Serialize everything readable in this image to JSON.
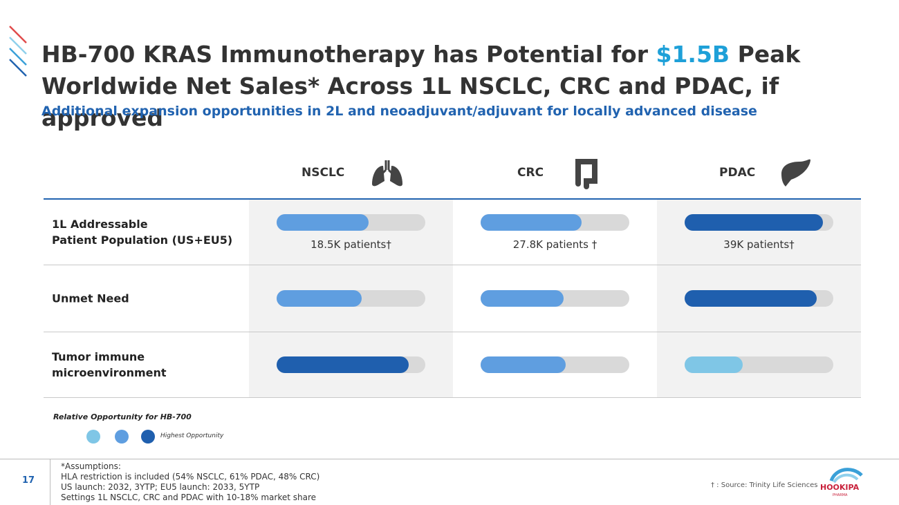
{
  "header": {
    "title_parts": [
      "HB-700 KRAS Immunotherapy has Potential for ",
      "$1.5B",
      " Peak Worldwide Net Sales* Across 1L NSCLC, CRC and PDAC, if approved"
    ],
    "subtitle": "Additional expansion opportunities in 2L and neoadjuvant/adjuvant for locally advanced disease"
  },
  "table": {
    "columns": [
      "NSCLC",
      "CRC",
      "PDAC"
    ],
    "rows": [
      {
        "label": "1L Addressable\nPatient Population (US+EU5)",
        "cells": [
          {
            "value": 62,
            "color": "#5f9ee0",
            "label": "18.5K patients†"
          },
          {
            "value": 68,
            "color": "#5f9ee0",
            "label": "27.8K patients †"
          },
          {
            "value": 93,
            "color": "#1f5fae",
            "label": "39K patients†"
          }
        ]
      },
      {
        "label": "Unmet Need",
        "cells": [
          {
            "value": 57,
            "color": "#5f9ee0"
          },
          {
            "value": 56,
            "color": "#5f9ee0"
          },
          {
            "value": 89,
            "color": "#1f5fae"
          }
        ]
      },
      {
        "label": "Tumor immune\nmicroenvironment",
        "cells": [
          {
            "value": 89,
            "color": "#1f5fae"
          },
          {
            "value": 57,
            "color": "#5f9ee0"
          },
          {
            "value": 39,
            "color": "#7fc6e6"
          }
        ]
      }
    ]
  },
  "legend": {
    "title": "Relative Opportunity for HB-700",
    "colors": [
      "#7fc6e6",
      "#5f9ee0",
      "#1f5fae"
    ],
    "label": "Highest Opportunity"
  },
  "footer": {
    "page": "17",
    "assumptions": [
      "*Assumptions:",
      "HLA restriction is included (54% NSCLC, 61% PDAC, 48% CRC)",
      "US launch: 2032, 3YTP; EU5 launch: 2033, 5YTP",
      "Settings 1L NSCLC, CRC and PDAC with 10-18% market share"
    ],
    "source": "† : Source: Trinity Life Sciences",
    "logo": "HOOKIPA",
    "logo_sub": "PHARMA"
  }
}
